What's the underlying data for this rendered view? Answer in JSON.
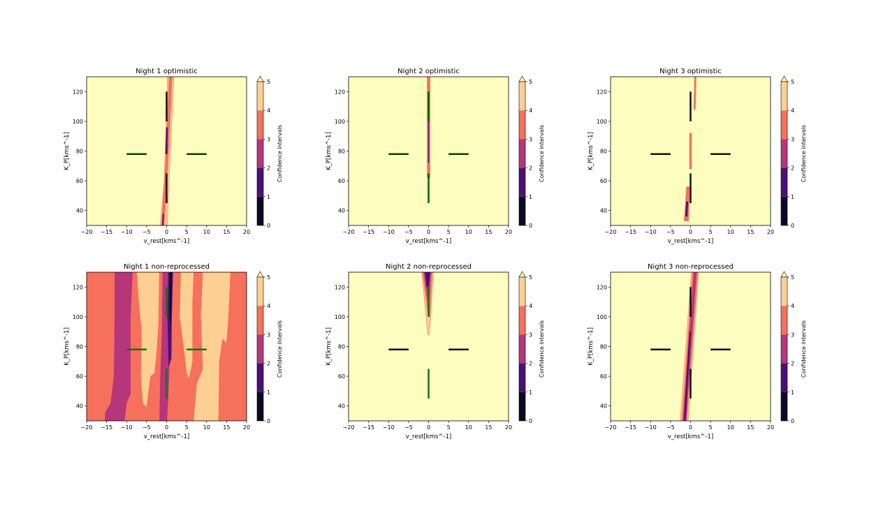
{
  "chart_data": [
    {
      "type": "contour",
      "title": "Night 1 optimistic",
      "xlabel": "v_rest[kms^-1]",
      "ylabel": "K_P[kms^-1]",
      "xlim": [
        -20,
        20
      ],
      "ylim": [
        30,
        130
      ],
      "xticks": [
        "-20",
        "-15",
        "-10",
        "-5",
        "0",
        "5",
        "10",
        "15",
        "20"
      ],
      "yticks": [
        "40",
        "60",
        "80",
        "100",
        "120"
      ],
      "colorbar": {
        "label": "Confidence intervals",
        "ticks": [
          "0",
          "1",
          "2",
          "3",
          "4",
          "5"
        ],
        "extend": "max"
      },
      "regions": [
        {
          "level": "4-5",
          "points": [
            [
              -1.6,
              30
            ],
            [
              0.2,
              30
            ],
            [
              0.6,
              60
            ],
            [
              1.8,
              130
            ],
            [
              0.2,
              130
            ],
            [
              -0.6,
              60
            ]
          ]
        },
        {
          "level": "3-4",
          "points": [
            [
              -1.3,
              30
            ],
            [
              -0.6,
              30
            ],
            [
              0.3,
              70
            ],
            [
              1.4,
              130
            ],
            [
              0.6,
              130
            ],
            [
              -0.3,
              70
            ]
          ]
        },
        {
          "level": "1-2",
          "points": [
            [
              -0.3,
              78
            ],
            [
              0.2,
              78
            ],
            [
              0.3,
              96
            ],
            [
              -0.1,
              96
            ]
          ]
        },
        {
          "level": "1-2",
          "points": [
            [
              -1.1,
              30
            ],
            [
              -0.8,
              30
            ],
            [
              -0.7,
              38
            ],
            [
              -1,
              38
            ]
          ]
        }
      ],
      "markers": {
        "horizontal_color": "#0b3d0b",
        "vertical_color": "#111111"
      }
    },
    {
      "type": "contour",
      "title": "Night 2 optimistic",
      "xlabel": "v_rest[kms^-1]",
      "ylabel": "K_P[kms^-1]",
      "xlim": [
        -20,
        20
      ],
      "ylim": [
        30,
        130
      ],
      "xticks": [
        "-20",
        "-15",
        "-10",
        "-5",
        "0",
        "5",
        "10",
        "15",
        "20"
      ],
      "yticks": [
        "40",
        "60",
        "80",
        "100",
        "120"
      ],
      "colorbar": {
        "label": "Confidence intervals",
        "ticks": [
          "0",
          "1",
          "2",
          "3",
          "4",
          "5"
        ],
        "extend": "max"
      },
      "regions": [
        {
          "level": "3-4",
          "points": [
            [
              -0.35,
              62
            ],
            [
              0.35,
              62
            ],
            [
              0.35,
              130
            ],
            [
              -0.35,
              130
            ]
          ]
        },
        {
          "level": "1-2",
          "points": [
            [
              -0.12,
              72
            ],
            [
              0.12,
              72
            ],
            [
              0.12,
              112
            ],
            [
              -0.12,
              112
            ]
          ]
        }
      ],
      "markers": {
        "horizontal_color": "#0b3d0b",
        "vertical_color": "#0b5d0b"
      }
    },
    {
      "type": "contour",
      "title": "Night 3 optimistic",
      "xlabel": "v_rest[kms^-1]",
      "ylabel": "K_P[kms^-1]",
      "xlim": [
        -20,
        20
      ],
      "ylim": [
        30,
        130
      ],
      "xticks": [
        "-20",
        "-15",
        "-10",
        "-5",
        "0",
        "5",
        "10",
        "15",
        "20"
      ],
      "yticks": [
        "40",
        "60",
        "80",
        "100",
        "120"
      ],
      "colorbar": {
        "label": "Confidence intervals",
        "ticks": [
          "0",
          "1",
          "2",
          "3",
          "4",
          "5"
        ],
        "extend": "max"
      },
      "regions": [
        {
          "level": "3-4",
          "points": [
            [
              0.8,
              108
            ],
            [
              1.2,
              108
            ],
            [
              1.4,
              130
            ],
            [
              1,
              130
            ]
          ]
        },
        {
          "level": "3-4",
          "points": [
            [
              -0.25,
              68
            ],
            [
              0.25,
              68
            ],
            [
              0.25,
              92
            ],
            [
              -0.25,
              92
            ]
          ]
        },
        {
          "level": "3-4",
          "points": [
            [
              -1.6,
              33
            ],
            [
              -0.5,
              33
            ],
            [
              -0.2,
              56
            ],
            [
              -1,
              56
            ]
          ]
        },
        {
          "level": "1-2",
          "points": [
            [
              -1.3,
              36
            ],
            [
              -0.8,
              36
            ],
            [
              -0.6,
              46
            ],
            [
              -1.1,
              46
            ]
          ]
        }
      ],
      "markers": {
        "horizontal_color": "#111111",
        "vertical_color": "#111111"
      }
    },
    {
      "type": "contour",
      "title": "Night 1 non-reprocessed",
      "xlabel": "v_rest[kms^-1]",
      "ylabel": "K_P[kms^-1]",
      "xlim": [
        -20,
        20
      ],
      "ylim": [
        30,
        130
      ],
      "xticks": [
        "-20",
        "-15",
        "-10",
        "-5",
        "0",
        "5",
        "10",
        "15",
        "20"
      ],
      "yticks": [
        "40",
        "60",
        "80",
        "100",
        "120"
      ],
      "colorbar": {
        "label": "Confidence intervals",
        "ticks": [
          "0",
          "1",
          "2",
          "3",
          "4",
          "5"
        ],
        "extend": "max"
      },
      "background_level": "3-4",
      "regions": [
        {
          "level": "2-3",
          "points": [
            [
              -15.5,
              30
            ],
            [
              -10.5,
              30
            ],
            [
              -10,
              42
            ],
            [
              -9,
              48
            ],
            [
              -9,
              100
            ],
            [
              -8.5,
              130
            ],
            [
              -13,
              130
            ],
            [
              -13,
              100
            ],
            [
              -13.2,
              60
            ],
            [
              -14,
              42
            ],
            [
              -15.3,
              36
            ]
          ]
        },
        {
          "level": "4-5",
          "points": [
            [
              -6,
              42
            ],
            [
              -5,
              39
            ],
            [
              -4,
              60
            ],
            [
              -3,
              62
            ],
            [
              -2.5,
              75
            ],
            [
              -2,
              95
            ],
            [
              -1.8,
              130
            ],
            [
              -7.5,
              130
            ],
            [
              -7,
              110
            ],
            [
              -6.3,
              90
            ],
            [
              -6.5,
              60
            ]
          ]
        },
        {
          "level": "2-3",
          "points": [
            [
              -1.8,
              30
            ],
            [
              0.1,
              30
            ],
            [
              0.5,
              50
            ],
            [
              1,
              90
            ],
            [
              1.5,
              130
            ],
            [
              -1,
              130
            ],
            [
              -1.2,
              90
            ],
            [
              -1.6,
              60
            ]
          ]
        },
        {
          "level": "1-2",
          "points": [
            [
              0.5,
              66
            ],
            [
              1.2,
              72
            ],
            [
              1.3,
              100
            ],
            [
              1.6,
              130
            ],
            [
              0.4,
              130
            ],
            [
              0.2,
              100
            ]
          ]
        },
        {
          "level": "0-1",
          "points": [
            [
              0.8,
              95
            ],
            [
              1.1,
              95
            ],
            [
              1.3,
              130
            ],
            [
              0.7,
              130
            ]
          ]
        },
        {
          "level": "4-5",
          "points": [
            [
              5,
              62
            ],
            [
              5.6,
              58
            ],
            [
              6.5,
              70
            ],
            [
              6.5,
              110
            ],
            [
              6.8,
              130
            ],
            [
              3.5,
              130
            ],
            [
              3.2,
              100
            ],
            [
              4.2,
              80
            ]
          ]
        },
        {
          "level": "4-5",
          "points": [
            [
              6.7,
              30
            ],
            [
              13,
              30
            ],
            [
              13.2,
              70
            ],
            [
              14,
              85
            ],
            [
              15,
              82
            ],
            [
              15.5,
              100
            ],
            [
              16,
              130
            ],
            [
              9,
              130
            ],
            [
              8.5,
              100
            ],
            [
              9,
              65
            ],
            [
              7.5,
              55
            ]
          ]
        }
      ],
      "markers": {
        "horizontal_color": "#1a6e1a",
        "vertical_color": "#1a6e1a"
      }
    },
    {
      "type": "contour",
      "title": "Night 2 non-reprocessed",
      "xlabel": "v_rest[kms^-1]",
      "ylabel": "K_P[kms^-1]",
      "xlim": [
        -20,
        20
      ],
      "ylim": [
        30,
        130
      ],
      "xticks": [
        "-20",
        "-15",
        "-10",
        "-5",
        "0",
        "5",
        "10",
        "15",
        "20"
      ],
      "yticks": [
        "40",
        "60",
        "80",
        "100",
        "120"
      ],
      "colorbar": {
        "label": "Confidence intervals",
        "ticks": [
          "0",
          "1",
          "2",
          "3",
          "4",
          "5"
        ],
        "extend": "max"
      },
      "regions": [
        {
          "level": "4-5",
          "points": [
            [
              -1.7,
              130
            ],
            [
              1.2,
              130
            ],
            [
              0.2,
              88
            ],
            [
              -0.2,
              88
            ]
          ]
        },
        {
          "level": "3-4",
          "points": [
            [
              -1.5,
              130
            ],
            [
              0.9,
              130
            ],
            [
              0.3,
              100
            ],
            [
              -0.1,
              100
            ]
          ]
        },
        {
          "level": "2-3",
          "points": [
            [
              -1.2,
              130
            ],
            [
              0.6,
              130
            ],
            [
              0.1,
              108
            ],
            [
              -0.3,
              112
            ]
          ]
        },
        {
          "level": "1-2",
          "points": [
            [
              -0.9,
              130
            ],
            [
              0.4,
              130
            ],
            [
              0,
              120
            ],
            [
              -0.5,
              120
            ]
          ]
        }
      ],
      "markers": {
        "horizontal_color": "#111111",
        "vertical_color": "#1a6e1a"
      }
    },
    {
      "type": "contour",
      "title": "Night 3 non-reprocessed",
      "xlabel": "v_rest[kms^-1]",
      "ylabel": "K_P[kms^-1]",
      "xlim": [
        -20,
        20
      ],
      "ylim": [
        30,
        130
      ],
      "xticks": [
        "-20",
        "-15",
        "-10",
        "-5",
        "0",
        "5",
        "10",
        "15",
        "20"
      ],
      "yticks": [
        "40",
        "60",
        "80",
        "100",
        "120"
      ],
      "colorbar": {
        "label": "Confidence intervals",
        "ticks": [
          "0",
          "1",
          "2",
          "3",
          "4",
          "5"
        ],
        "extend": "max"
      },
      "regions": [
        {
          "level": "4-5",
          "points": [
            [
              -2.6,
              30
            ],
            [
              -0.6,
              30
            ],
            [
              2,
              130
            ],
            [
              0.2,
              130
            ]
          ]
        },
        {
          "level": "3-4",
          "points": [
            [
              -2.2,
              30
            ],
            [
              -0.9,
              30
            ],
            [
              1.8,
              130
            ],
            [
              0.5,
              130
            ]
          ]
        },
        {
          "level": "2-3",
          "points": [
            [
              -1.9,
              30
            ],
            [
              -1.1,
              30
            ],
            [
              1.5,
              130
            ],
            [
              0.8,
              130
            ]
          ]
        },
        {
          "level": "1-2",
          "points": [
            [
              -1.7,
              30
            ],
            [
              -1.3,
              30
            ],
            [
              0.1,
              90
            ],
            [
              -0.3,
              90
            ]
          ]
        }
      ],
      "markers": {
        "horizontal_color": "#111111",
        "vertical_color": "#111111"
      }
    }
  ],
  "palette": {
    "0-1": "#0c0826",
    "1-2": "#4a1079",
    "2-3": "#b5367a",
    "3-4": "#f6705c",
    "4-5": "#fecf92",
    ">5": "#fcfdbf"
  }
}
